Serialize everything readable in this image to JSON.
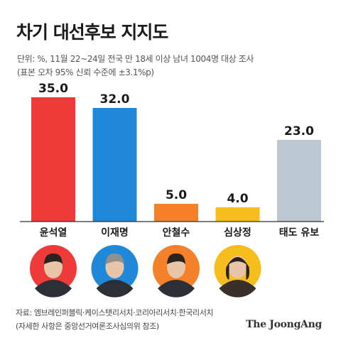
{
  "title": "차기 대선후보 지지도",
  "subtitle_line1": "단위: %, 11월 22~24일 전국 만 18세 이상 남녀 1004명 대상 조사",
  "subtitle_line2": "(표본 오차 95% 신뢰 수준에 ±3.1%p)",
  "source_line1": "자료: 엠브레인퍼블릭·케이스탯리서치·코리아리서치·한국리서치",
  "source_line2": "(자세한 사항은 중앙선거여론조사심의위 참조)",
  "brand": "The JoongAng",
  "chart_data": {
    "type": "bar",
    "categories": [
      "윤석열",
      "이재명",
      "안철수",
      "심상정",
      "태도 유보"
    ],
    "values": [
      35.0,
      32.0,
      5.0,
      4.0,
      23.0
    ],
    "value_labels": [
      "35.0",
      "32.0",
      "5.0",
      "4.0",
      "23.0"
    ],
    "colors": [
      "#ef3a3a",
      "#1f88d9",
      "#f4812a",
      "#f6bd1c",
      "#bcc8d2"
    ],
    "ylim": [
      0,
      35
    ],
    "grid": false,
    "legend": "none"
  },
  "photos": [
    {
      "icon": "candidate-yoon-photo",
      "bg": "#ef3a3a"
    },
    {
      "icon": "candidate-lee-photo",
      "bg": "#1f88d9"
    },
    {
      "icon": "candidate-ahn-photo",
      "bg": "#f4812a"
    },
    {
      "icon": "candidate-sim-photo",
      "bg": "#f6bd1c"
    }
  ]
}
